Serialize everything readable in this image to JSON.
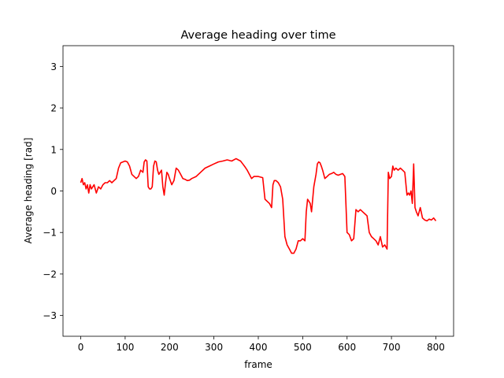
{
  "chart_data": {
    "type": "line",
    "title": "Average heading over time",
    "xlabel": "frame",
    "ylabel": "Average heading [rad]",
    "xlim": [
      -40,
      840
    ],
    "ylim": [
      -3.5,
      3.5
    ],
    "xticks": [
      0,
      100,
      200,
      300,
      400,
      500,
      600,
      700,
      800
    ],
    "yticks": [
      -3,
      -2,
      -1,
      0,
      1,
      2,
      3
    ],
    "grid": false,
    "legend": "none",
    "series": [
      {
        "color": "#ff0000",
        "x": [
          0,
          3,
          6,
          9,
          12,
          15,
          18,
          21,
          24,
          27,
          30,
          35,
          40,
          45,
          50,
          55,
          60,
          65,
          70,
          75,
          80,
          85,
          90,
          95,
          100,
          105,
          110,
          115,
          120,
          125,
          130,
          135,
          140,
          143,
          146,
          149,
          152,
          155,
          158,
          161,
          164,
          167,
          170,
          173,
          176,
          179,
          182,
          185,
          188,
          191,
          194,
          197,
          200,
          205,
          210,
          215,
          220,
          225,
          230,
          235,
          240,
          245,
          250,
          260,
          270,
          280,
          290,
          300,
          310,
          320,
          330,
          340,
          350,
          355,
          360,
          365,
          370,
          375,
          380,
          385,
          390,
          400,
          410,
          415,
          420,
          425,
          430,
          433,
          436,
          440,
          445,
          450,
          455,
          460,
          465,
          470,
          475,
          480,
          485,
          490,
          495,
          500,
          505,
          508,
          511,
          514,
          517,
          520,
          525,
          530,
          533,
          536,
          539,
          542,
          545,
          550,
          555,
          560,
          565,
          570,
          575,
          580,
          585,
          590,
          595,
          600,
          605,
          610,
          615,
          620,
          625,
          630,
          635,
          640,
          645,
          650,
          655,
          660,
          665,
          670,
          675,
          680,
          685,
          690,
          693,
          696,
          700,
          703,
          706,
          710,
          715,
          720,
          725,
          730,
          735,
          738,
          741,
          744,
          747,
          750,
          753,
          756,
          760,
          765,
          770,
          775,
          780,
          785,
          790,
          795,
          800
        ],
        "y": [
          0.2,
          0.3,
          0.15,
          0.2,
          0.05,
          0.15,
          -0.05,
          0.15,
          0.05,
          0.1,
          0.15,
          -0.05,
          0.1,
          0.05,
          0.15,
          0.2,
          0.2,
          0.25,
          0.2,
          0.25,
          0.3,
          0.55,
          0.68,
          0.7,
          0.72,
          0.7,
          0.6,
          0.4,
          0.35,
          0.3,
          0.35,
          0.5,
          0.45,
          0.7,
          0.75,
          0.72,
          0.1,
          0.05,
          0.05,
          0.1,
          0.6,
          0.72,
          0.7,
          0.5,
          0.4,
          0.45,
          0.5,
          0.1,
          -0.1,
          0.2,
          0.45,
          0.4,
          0.3,
          0.15,
          0.25,
          0.55,
          0.5,
          0.4,
          0.3,
          0.28,
          0.25,
          0.26,
          0.3,
          0.35,
          0.45,
          0.55,
          0.6,
          0.65,
          0.7,
          0.72,
          0.75,
          0.72,
          0.78,
          0.75,
          0.72,
          0.65,
          0.58,
          0.5,
          0.4,
          0.3,
          0.35,
          0.35,
          0.32,
          -0.2,
          -0.25,
          -0.3,
          -0.4,
          0.15,
          0.25,
          0.25,
          0.2,
          0.1,
          -0.2,
          -1.1,
          -1.3,
          -1.4,
          -1.5,
          -1.5,
          -1.4,
          -1.2,
          -1.2,
          -1.15,
          -1.2,
          -0.5,
          -0.2,
          -0.25,
          -0.3,
          -0.5,
          0.1,
          0.4,
          0.65,
          0.7,
          0.68,
          0.6,
          0.5,
          0.3,
          0.35,
          0.4,
          0.42,
          0.45,
          0.4,
          0.38,
          0.4,
          0.42,
          0.35,
          -1.0,
          -1.05,
          -1.2,
          -1.15,
          -0.45,
          -0.5,
          -0.45,
          -0.5,
          -0.55,
          -0.6,
          -1.0,
          -1.1,
          -1.15,
          -1.2,
          -1.3,
          -1.1,
          -1.35,
          -1.3,
          -1.4,
          0.45,
          0.3,
          0.35,
          0.6,
          0.5,
          0.55,
          0.5,
          0.55,
          0.5,
          0.45,
          -0.1,
          -0.05,
          -0.1,
          0.0,
          -0.3,
          0.65,
          -0.4,
          -0.5,
          -0.6,
          -0.4,
          -0.65,
          -0.7,
          -0.72,
          -0.68,
          -0.7,
          -0.65,
          -0.72
        ]
      }
    ]
  }
}
